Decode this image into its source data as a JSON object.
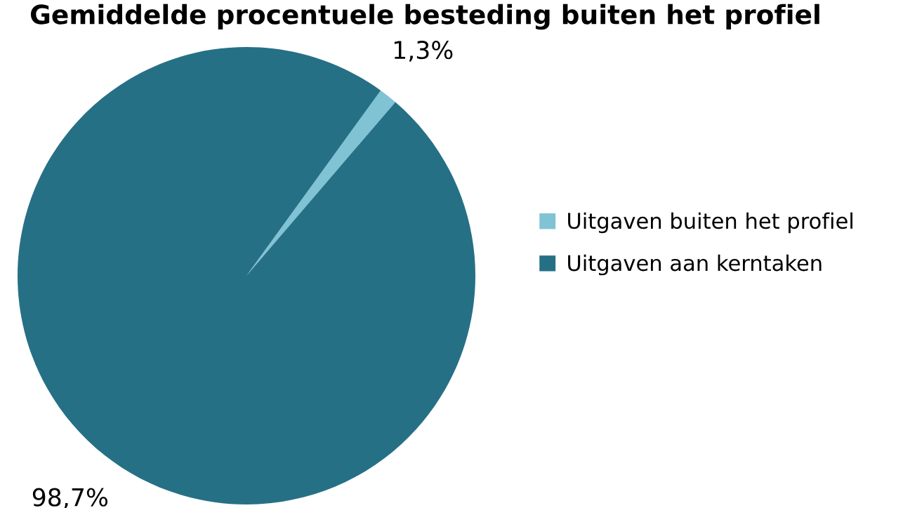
{
  "chart_data": {
    "type": "pie",
    "title": "Gemiddelde procentuele besteding buiten het profiel",
    "categories": [
      "Uitgaven buiten het profiel",
      "Uitgaven aan kerntaken"
    ],
    "values": [
      1.3,
      98.7
    ],
    "colors": [
      "#7fc3d5",
      "#267086"
    ],
    "value_labels": [
      "1,3%",
      "98,7%"
    ],
    "legend": "right"
  }
}
